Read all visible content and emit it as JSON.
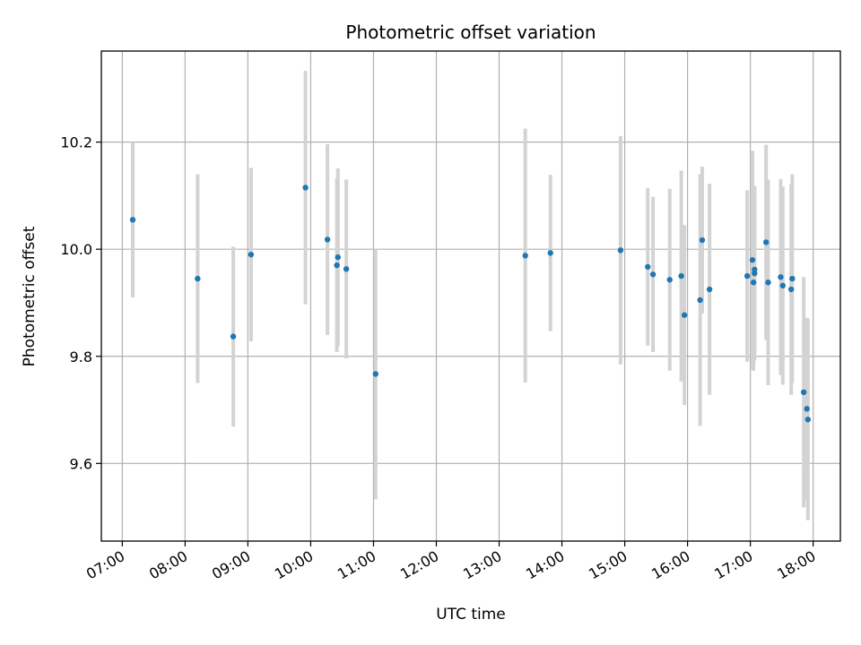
{
  "chart_data": {
    "type": "scatter",
    "title": "Photometric offset variation",
    "xlabel": "UTC time",
    "ylabel": "Photometric offset",
    "x_ticks": [
      "07:00",
      "08:00",
      "09:00",
      "10:00",
      "11:00",
      "12:00",
      "13:00",
      "14:00",
      "15:00",
      "16:00",
      "17:00",
      "18:00"
    ],
    "y_ticks": [
      "9.6",
      "9.8",
      "10.0",
      "10.2"
    ],
    "xlim": [
      "06:40",
      "18:26"
    ],
    "ylim": [
      9.455,
      10.37
    ],
    "grid": true,
    "colors": {
      "point": "#1f77b4",
      "errorbar": "#d3d3d3",
      "grid": "#b0b0b0"
    },
    "points": [
      {
        "x": "07:10",
        "y": 10.055,
        "err": 0.145
      },
      {
        "x": "08:12",
        "y": 9.945,
        "err": 0.195
      },
      {
        "x": "08:46",
        "y": 9.837,
        "err": 0.168
      },
      {
        "x": "09:03",
        "y": 9.99,
        "err": 0.162
      },
      {
        "x": "09:55",
        "y": 10.115,
        "err": 0.218
      },
      {
        "x": "10:16",
        "y": 10.018,
        "err": 0.178
      },
      {
        "x": "10:25",
        "y": 9.97,
        "err": 0.162
      },
      {
        "x": "10:26",
        "y": 9.985,
        "err": 0.166
      },
      {
        "x": "10:34",
        "y": 9.963,
        "err": 0.167
      },
      {
        "x": "11:02",
        "y": 9.767,
        "err": 0.234
      },
      {
        "x": "13:25",
        "y": 9.988,
        "err": 0.237
      },
      {
        "x": "13:49",
        "y": 9.993,
        "err": 0.146
      },
      {
        "x": "14:56",
        "y": 9.998,
        "err": 0.213
      },
      {
        "x": "15:22",
        "y": 9.967,
        "err": 0.147
      },
      {
        "x": "15:27",
        "y": 9.953,
        "err": 0.145
      },
      {
        "x": "15:43",
        "y": 9.943,
        "err": 0.17
      },
      {
        "x": "15:54",
        "y": 9.95,
        "err": 0.197
      },
      {
        "x": "15:57",
        "y": 9.877,
        "err": 0.168
      },
      {
        "x": "16:12",
        "y": 9.905,
        "err": 0.235
      },
      {
        "x": "16:14",
        "y": 10.017,
        "err": 0.137
      },
      {
        "x": "16:21",
        "y": 9.925,
        "err": 0.197
      },
      {
        "x": "16:57",
        "y": 9.95,
        "err": 0.16
      },
      {
        "x": "17:02",
        "y": 9.98,
        "err": 0.204
      },
      {
        "x": "17:03",
        "y": 9.938,
        "err": 0.165
      },
      {
        "x": "17:04",
        "y": 9.955,
        "err": 0.163
      },
      {
        "x": "17:04",
        "y": 9.962,
        "err": 0.154
      },
      {
        "x": "17:15",
        "y": 10.013,
        "err": 0.182
      },
      {
        "x": "17:17",
        "y": 9.938,
        "err": 0.192
      },
      {
        "x": "17:29",
        "y": 9.948,
        "err": 0.183
      },
      {
        "x": "17:31",
        "y": 9.932,
        "err": 0.185
      },
      {
        "x": "17:39",
        "y": 9.925,
        "err": 0.197
      },
      {
        "x": "17:40",
        "y": 9.945,
        "err": 0.195
      },
      {
        "x": "17:51",
        "y": 9.733,
        "err": 0.215
      },
      {
        "x": "17:54",
        "y": 9.702,
        "err": 0.17
      },
      {
        "x": "17:55",
        "y": 9.682,
        "err": 0.188
      }
    ]
  }
}
